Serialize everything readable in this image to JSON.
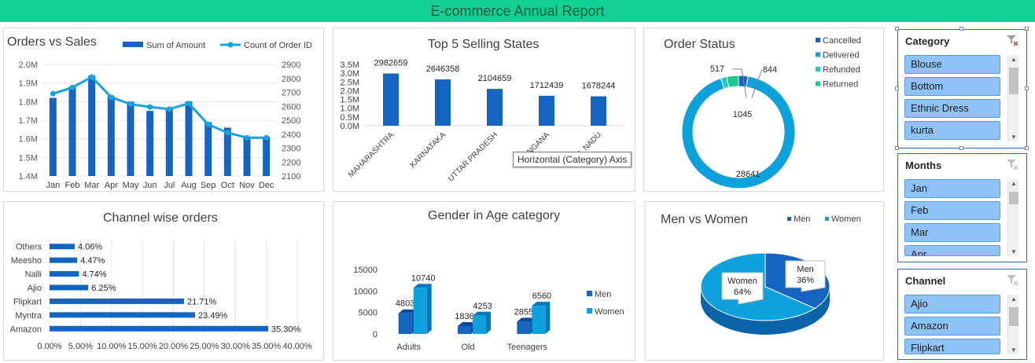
{
  "app": {
    "title": "E-commerce Annual Report"
  },
  "colors": {
    "header": "#13cf94",
    "bar": "#1565c0",
    "line": "#1ba1e2",
    "cancelled": "#1565c0",
    "delivered": "#0ea1db",
    "refunded": "#20c9c9",
    "returned": "#17c98f",
    "men": "#1565c0",
    "women": "#0ea1db"
  },
  "tooltip": "Horizontal (Category) Axis",
  "charts": [
    {
      "id": "orders_vs_sales",
      "title": "Orders vs Sales",
      "chart_data": {
        "type": "bar",
        "categories": [
          "Jan",
          "Feb",
          "Mar",
          "Apr",
          "May",
          "Jun",
          "Jul",
          "Aug",
          "Sep",
          "Oct",
          "Nov",
          "Dec"
        ],
        "series": [
          {
            "name": "Sum of Amount",
            "type": "bar",
            "axis": "left",
            "values": [
              1820000,
              1880000,
              1940000,
              1830000,
              1800000,
              1750000,
              1760000,
              1800000,
              1690000,
              1660000,
              1610000,
              1610000
            ]
          },
          {
            "name": "Count of Order ID",
            "type": "line",
            "axis": "right",
            "values": [
              2690,
              2735,
              2810,
              2665,
              2615,
              2595,
              2580,
              2620,
              2470,
              2410,
              2375,
              2375
            ]
          }
        ],
        "ylim": [
          1400000,
          2000000
        ],
        "y2lim": [
          2100,
          2900
        ],
        "yticks": [
          "1.4M",
          "1.5M",
          "1.6M",
          "1.7M",
          "1.8M",
          "1.9M",
          "2.0M"
        ],
        "y2ticks": [
          "2100",
          "2200",
          "2300",
          "2400",
          "2500",
          "2600",
          "2700",
          "2800",
          "2900"
        ],
        "legend": "top"
      }
    },
    {
      "id": "top5_states",
      "title": "Top 5 Selling States",
      "chart_data": {
        "type": "bar",
        "categories": [
          "MAHARASHTRA",
          "KARNATAKA",
          "UTTAR PRADESH",
          "TELANGANA",
          "TAMIL NADU"
        ],
        "values": [
          2982659,
          2646358,
          2104659,
          1712439,
          1678244
        ],
        "labels": [
          "2982659",
          "2646358",
          "2104659",
          "1712439",
          "1678244"
        ],
        "ylim": [
          0,
          3500000
        ],
        "yticks": [
          "0.0M",
          "0.5M",
          "1.0M",
          "1.5M",
          "2.0M",
          "2.5M",
          "3.0M",
          "3.5M"
        ]
      }
    },
    {
      "id": "order_status",
      "title": "Order Status",
      "chart_data": {
        "type": "pie",
        "style": "doughnut",
        "categories": [
          "Cancelled",
          "Delivered",
          "Refunded",
          "Returned"
        ],
        "values": [
          844,
          28641,
          517,
          1045
        ],
        "labels": [
          "844",
          "28641",
          "517",
          "1045"
        ],
        "legend": "right"
      }
    },
    {
      "id": "channel_orders",
      "title": "Channel wise orders",
      "chart_data": {
        "type": "bar",
        "orientation": "horizontal",
        "categories": [
          "Amazon",
          "Myntra",
          "Flipkart",
          "Ajio",
          "Nalli",
          "Meesho",
          "Others"
        ],
        "values": [
          35.3,
          23.49,
          21.71,
          6.25,
          4.74,
          4.47,
          4.06
        ],
        "labels": [
          "35.30%",
          "23.49%",
          "21.71%",
          "6.25%",
          "4.74%",
          "4.47%",
          "4.06%"
        ],
        "xlim": [
          0,
          40
        ],
        "xticks": [
          "0.00%",
          "5.00%",
          "10.00%",
          "15.00%",
          "20.00%",
          "25.00%",
          "30.00%",
          "35.00%",
          "40.00%"
        ]
      }
    },
    {
      "id": "gender_age",
      "title": "Gender in Age category",
      "chart_data": {
        "type": "bar",
        "style": "3d-clustered",
        "categories": [
          "Adults",
          "Old",
          "Teenagers"
        ],
        "series": [
          {
            "name": "Men",
            "values": [
              4803,
              1836,
              2855
            ],
            "labels": [
              "4803",
              "1836",
              "2855"
            ]
          },
          {
            "name": "Women",
            "values": [
              10740,
              4253,
              6560
            ],
            "labels": [
              "10740",
              "4253",
              "6560"
            ]
          }
        ],
        "ylim": [
          0,
          15000
        ],
        "yticks": [
          "0",
          "5000",
          "10000",
          "15000"
        ],
        "legend": "right"
      }
    },
    {
      "id": "men_women",
      "title": "Men vs Women",
      "chart_data": {
        "type": "pie",
        "style": "3d",
        "categories": [
          "Men",
          "Women"
        ],
        "values": [
          36,
          64
        ],
        "labels": [
          [
            "Men",
            "36%"
          ],
          [
            "Women",
            "64%"
          ]
        ],
        "legend": "top"
      }
    }
  ],
  "slicers": [
    {
      "title": "Category",
      "items": [
        "Blouse",
        "Bottom",
        "Ethnic Dress",
        "kurta"
      ]
    },
    {
      "title": "Months",
      "items": [
        "Jan",
        "Feb",
        "Mar",
        "Apr"
      ]
    },
    {
      "title": "Channel",
      "items": [
        "Ajio",
        "Amazon",
        "Flipkart"
      ]
    }
  ]
}
